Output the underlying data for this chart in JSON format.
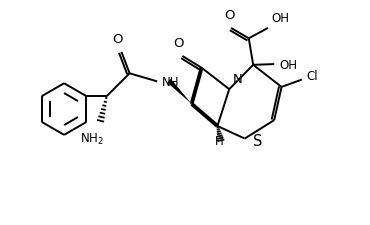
{
  "background_color": "#ffffff",
  "line_color": "#000000",
  "lw": 1.4,
  "blw": 2.8,
  "fs": 8.5,
  "figsize": [
    3.7,
    2.26
  ],
  "dpi": 100,
  "xlim": [
    0,
    10
  ],
  "ylim": [
    0,
    6
  ]
}
